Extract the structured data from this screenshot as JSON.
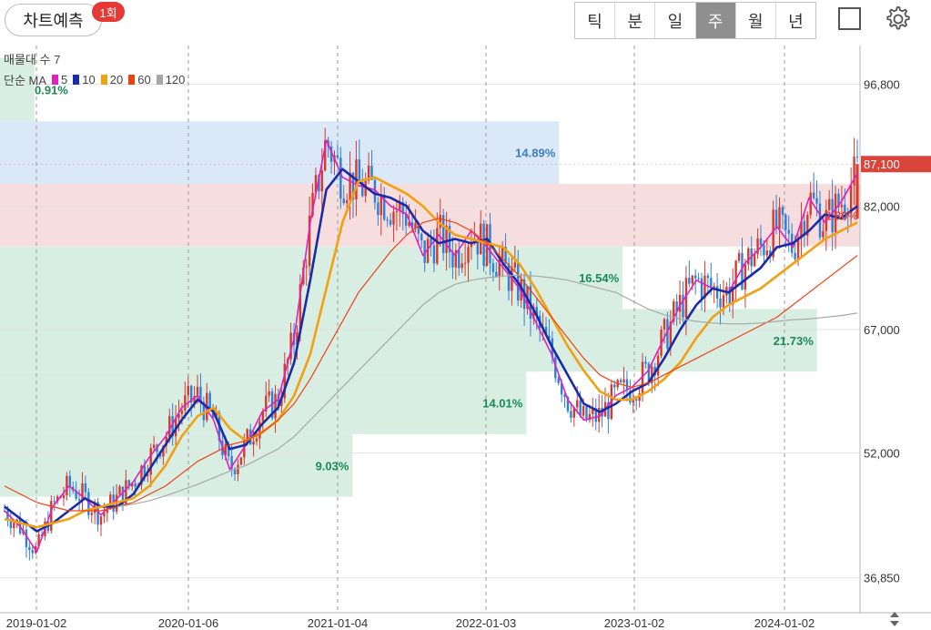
{
  "header": {
    "predict_label": "차트예측",
    "predict_badge": "1회",
    "period_tabs": [
      "틱",
      "분",
      "일",
      "주",
      "월",
      "년"
    ],
    "active_tab": "주"
  },
  "indicators": {
    "volume_profile_label": "매물대 수 7",
    "ma_label": "단순 MA",
    "ma_items": [
      {
        "label": "5",
        "color": "#e020c0"
      },
      {
        "label": "10",
        "color": "#1a2aa8"
      },
      {
        "label": "20",
        "color": "#f0a010"
      },
      {
        "label": "60",
        "color": "#f04010"
      },
      {
        "label": "120",
        "color": "#a8a8a8"
      }
    ]
  },
  "chart_data": {
    "type": "candlestick",
    "x_tick_labels": [
      "2019-01-02",
      "2020-01-06",
      "2021-01-04",
      "2022-01-03",
      "2023-01-02",
      "2024-01-02"
    ],
    "y_tick_labels": [
      "96,800",
      "82,000",
      "67,000",
      "52,000",
      "36,850"
    ],
    "y_ticks": [
      96800,
      82000,
      67000,
      52000,
      36850
    ],
    "ylim": [
      33500,
      101500
    ],
    "current_price": 87100,
    "current_price_label": "87,100",
    "volume_profile": [
      {
        "low": 92300,
        "high": 100000,
        "pct": "0.91%",
        "color": "#d8eee2",
        "text_color": "#1a8a55",
        "length": 0.04
      },
      {
        "low": 84700,
        "high": 92300,
        "pct": "14.89%",
        "color": "#dae8f8",
        "text_color": "#3a7fc0",
        "length": 0.65
      },
      {
        "low": 77100,
        "high": 84700,
        "pct": "2.80%",
        "color": "#f7dede",
        "text_color": "#d04848",
        "length": 1.0
      },
      {
        "low": 69500,
        "high": 77100,
        "pct": "16.54%",
        "color": "#d8eee2",
        "text_color": "#1a8a55",
        "length": 0.724
      },
      {
        "low": 61900,
        "high": 69500,
        "pct": "21.73%",
        "color": "#d8eee2",
        "text_color": "#1a8a55",
        "length": 0.95
      },
      {
        "low": 54300,
        "high": 61900,
        "pct": "14.01%",
        "color": "#d8eee2",
        "text_color": "#1a8a55",
        "length": 0.612
      },
      {
        "low": 46700,
        "high": 54300,
        "pct": "9.03%",
        "color": "#d8eee2",
        "text_color": "#1a8a55",
        "length": 0.41
      }
    ],
    "ma_series": [
      {
        "name": "5",
        "color": "#e020c0",
        "values": [
          45000,
          43000,
          40000,
          45500,
          48000,
          46500,
          44500,
          46500,
          48500,
          51500,
          54000,
          57500,
          59000,
          56000,
          50000,
          53000,
          57000,
          58500,
          66000,
          80000,
          90000,
          85500,
          84500,
          84000,
          82000,
          81000,
          76000,
          78500,
          76000,
          79000,
          77000,
          74500,
          72000,
          68000,
          64000,
          58500,
          56000,
          56500,
          59000,
          60000,
          62000,
          66000,
          70000,
          73000,
          72000,
          71500,
          75000,
          77000,
          79500,
          77000,
          83000,
          80000,
          82500,
          86000
        ]
      },
      {
        "name": "10",
        "color": "#1a2aa8",
        "values": [
          45500,
          44000,
          42500,
          43500,
          45000,
          46500,
          45500,
          45500,
          47000,
          50000,
          53000,
          56000,
          58500,
          57000,
          52500,
          53000,
          55500,
          57500,
          63000,
          73000,
          84000,
          86500,
          85000,
          83500,
          83000,
          82000,
          79000,
          77500,
          78000,
          77500,
          78000,
          75000,
          72500,
          69000,
          65000,
          61500,
          58000,
          57000,
          58000,
          59500,
          60500,
          63500,
          67000,
          70000,
          72000,
          71500,
          73000,
          74500,
          77000,
          77500,
          79000,
          81000,
          80500,
          82000
        ]
      },
      {
        "name": "20",
        "color": "#f0a010",
        "values": [
          44000,
          43500,
          43000,
          43500,
          44000,
          45000,
          45500,
          46000,
          46500,
          48000,
          50500,
          54000,
          56500,
          57500,
          55000,
          53500,
          54500,
          56000,
          59000,
          64000,
          72000,
          80000,
          85000,
          85500,
          84500,
          83500,
          82000,
          80000,
          78500,
          78000,
          77500,
          77000,
          75000,
          72000,
          68500,
          65000,
          62000,
          59500,
          58500,
          58500,
          59500,
          61000,
          63000,
          66000,
          68500,
          70000,
          71000,
          72000,
          73500,
          75000,
          76500,
          78000,
          79000,
          80000
        ]
      },
      {
        "name": "60",
        "color": "#f04010",
        "values": [
          48000,
          47000,
          46000,
          45500,
          45000,
          45000,
          45000,
          45500,
          46000,
          47000,
          48000,
          49500,
          51000,
          52000,
          53000,
          53500,
          54500,
          56000,
          58000,
          61000,
          64500,
          68000,
          71500,
          74000,
          76500,
          78500,
          80000,
          80500,
          80000,
          79000,
          77500,
          75500,
          73500,
          71000,
          68500,
          66000,
          63500,
          61500,
          60500,
          60000,
          60500,
          61500,
          62500,
          63500,
          64500,
          65500,
          66500,
          67500,
          68500,
          70000,
          71500,
          73000,
          74500,
          76000
        ]
      },
      {
        "name": "120",
        "color": "#a8a8a8",
        "values": [
          null,
          null,
          null,
          null,
          null,
          null,
          null,
          45500,
          45800,
          46200,
          46800,
          47500,
          48200,
          49000,
          49800,
          50500,
          51500,
          52500,
          54000,
          56000,
          58000,
          60000,
          62000,
          64000,
          66000,
          68000,
          70000,
          71500,
          72500,
          73000,
          73300,
          73500,
          73600,
          73500,
          73300,
          73000,
          72500,
          72000,
          71500,
          70500,
          69500,
          68800,
          68300,
          68000,
          67800,
          67700,
          67700,
          67800,
          68000,
          68200,
          68300,
          68500,
          68700,
          69000
        ]
      }
    ]
  }
}
